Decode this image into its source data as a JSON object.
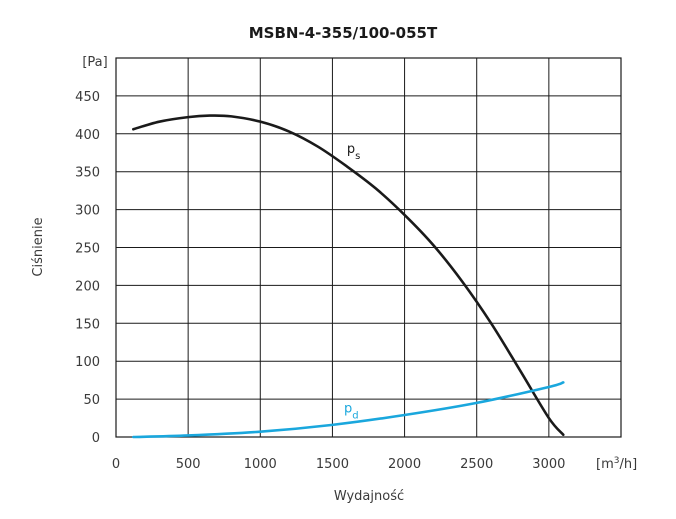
{
  "chart_data": {
    "type": "line",
    "title": "MSBN-4-355/100-055T",
    "xlabel": "Wydajność",
    "ylabel": "Ciśnienie",
    "x_unit_base": "[m",
    "x_unit_sup": "3",
    "x_unit_tail": "/h]",
    "y_unit": "[Pa]",
    "xlim": [
      0,
      3500
    ],
    "ylim": [
      0,
      500
    ],
    "x_ticks": [
      0,
      500,
      1000,
      1500,
      2000,
      2500,
      3000
    ],
    "y_ticks": [
      0,
      50,
      100,
      150,
      200,
      250,
      300,
      350,
      400,
      450
    ],
    "grid": true,
    "series": [
      {
        "name": "ps",
        "label_main": "p",
        "label_sub": "s",
        "color": "#1a1a1a",
        "label_at": [
          1600,
          375
        ],
        "x": [
          120,
          300,
          500,
          650,
          800,
          1000,
          1200,
          1400,
          1600,
          1800,
          2000,
          2200,
          2400,
          2600,
          2800,
          3000,
          3100
        ],
        "y": [
          406,
          416,
          422,
          424,
          423,
          416,
          403,
          383,
          357,
          328,
          293,
          253,
          205,
          150,
          88,
          25,
          3
        ]
      },
      {
        "name": "pd",
        "label_main": "p",
        "label_sub": "d",
        "color": "#1aa7dd",
        "label_at": [
          1580,
          32
        ],
        "x": [
          120,
          500,
          1000,
          1500,
          2000,
          2500,
          3000,
          3100
        ],
        "y": [
          0,
          2,
          7,
          16,
          29,
          45,
          66,
          72
        ]
      }
    ]
  }
}
